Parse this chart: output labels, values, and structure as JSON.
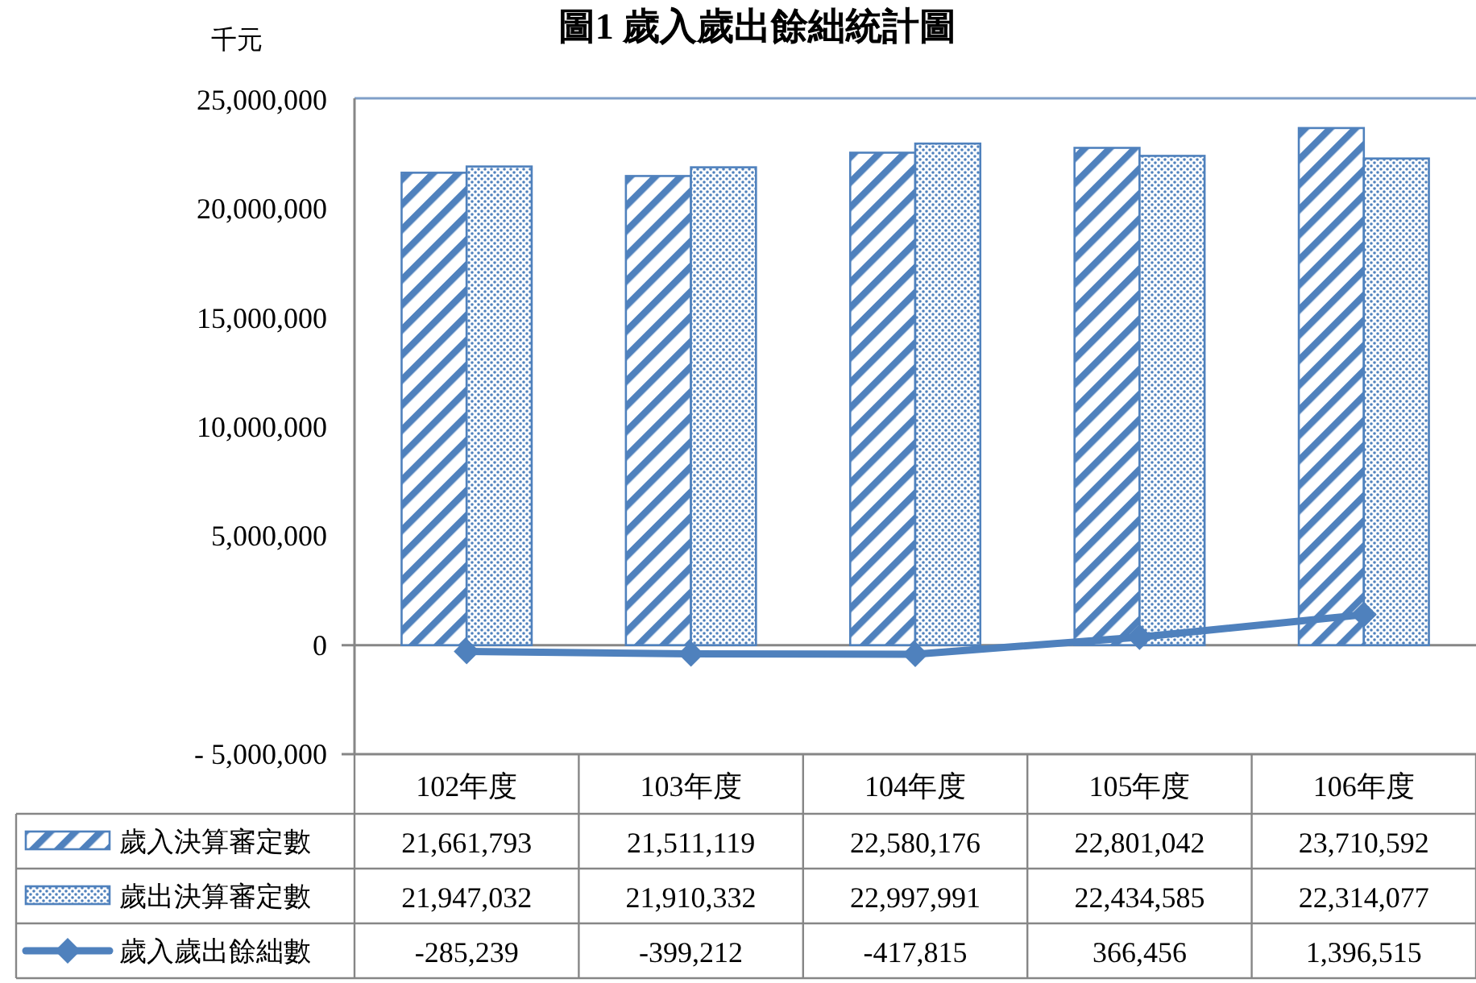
{
  "chart_data": {
    "type": "bar",
    "title": "圖1 歲入歲出餘絀統計圖",
    "ylabel": "千元",
    "categories": [
      "102年度",
      "103年度",
      "104年度",
      "105年度",
      "106年度"
    ],
    "series": [
      {
        "name": "歲入決算審定數",
        "color": "#4f81bd",
        "values": [
          21661793,
          21511119,
          22580176,
          22801042,
          23710592
        ],
        "value_labels": [
          "21,661,793",
          "21,511,119",
          "22,580,176",
          "22,801,042",
          "23,710,592"
        ]
      },
      {
        "name": "歲出決算審定數",
        "color": "#4f81bd",
        "values": [
          21947032,
          21910332,
          22997991,
          22434585,
          22314077
        ],
        "value_labels": [
          "21,947,032",
          "21,910,332",
          "22,997,991",
          "22,434,585",
          "22,314,077"
        ]
      },
      {
        "name": "歲入歲出餘絀數",
        "type": "line",
        "color": "#4f81bd",
        "values": [
          -285239,
          -399212,
          -417815,
          366456,
          1396515
        ],
        "value_labels": [
          "-285,239",
          "-399,212",
          "-417,815",
          "366,456",
          "1,396,515"
        ]
      }
    ],
    "ylim": [
      -5000000,
      25000000
    ],
    "yticks": [
      {
        "value": -5000000,
        "label": "- 5,000,000"
      },
      0,
      {
        "value": 5000000,
        "label": "5,000,000"
      },
      {
        "value": 10000000,
        "label": "10,000,000"
      },
      {
        "value": 15000000,
        "label": "15,000,000"
      },
      {
        "value": 20000000,
        "label": "20,000,000"
      },
      {
        "value": 25000000,
        "label": "25,000,000"
      }
    ],
    "marker": "diamond",
    "legend": "bottom"
  }
}
